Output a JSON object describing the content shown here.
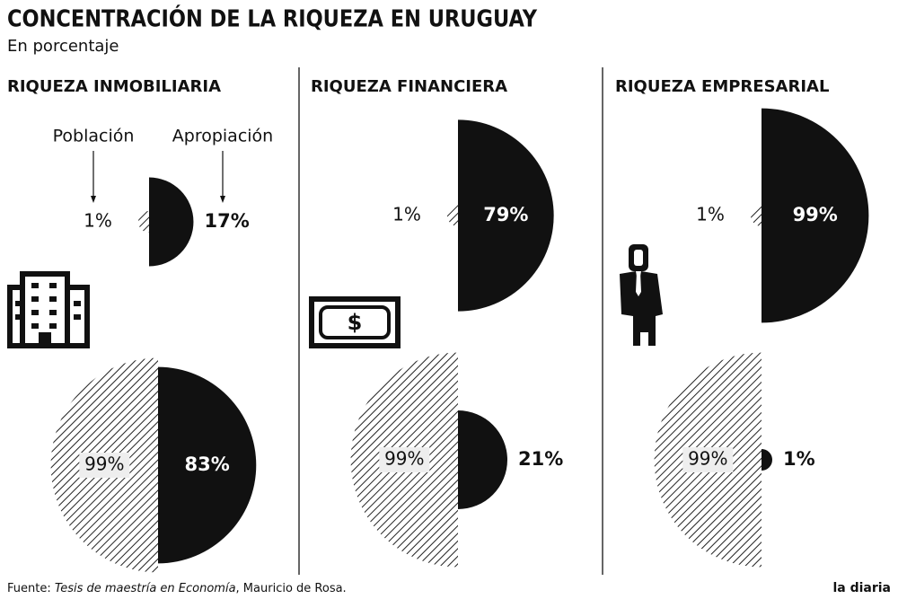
{
  "title": "CONCENTRACIÓN DE LA RIQUEZA EN URUGUAY",
  "subtitle": "En porcentaje",
  "chart_data": [
    {
      "type": "semicircle",
      "title": "RIQUEZA INMOBILIARIA",
      "series": [
        {
          "name": "Población",
          "color": "#111111",
          "pattern": "hatch",
          "values": [
            1,
            99
          ],
          "value_labels": [
            "1%",
            "99%"
          ]
        },
        {
          "name": "Apropiación",
          "color": "#111111",
          "values": [
            17,
            83
          ],
          "value_labels": [
            "17%",
            "83%"
          ]
        }
      ]
    },
    {
      "type": "semicircle",
      "title": "RIQUEZA FINANCIERA",
      "series": [
        {
          "color": "#111111",
          "pattern": "hatch",
          "values": [
            1,
            99
          ],
          "value_labels": [
            "1%",
            "99%"
          ]
        },
        {
          "color": "#111111",
          "values": [
            79,
            21
          ],
          "value_labels": [
            "79%",
            "21%"
          ]
        }
      ]
    },
    {
      "type": "semicircle",
      "title": "RIQUEZA EMPRESARIAL",
      "series": [
        {
          "color": "#111111",
          "pattern": "hatch",
          "values": [
            1,
            99
          ],
          "value_labels": [
            "1%",
            "99%"
          ]
        },
        {
          "color": "#111111",
          "values": [
            99,
            1
          ],
          "value_labels": [
            "99%",
            "1%"
          ]
        }
      ]
    }
  ],
  "source": {
    "prefix": "Fuente:",
    "work": "Tesis de maestría en Economía",
    "author": ", Mauricio de Rosa."
  },
  "logo": "la diaria"
}
